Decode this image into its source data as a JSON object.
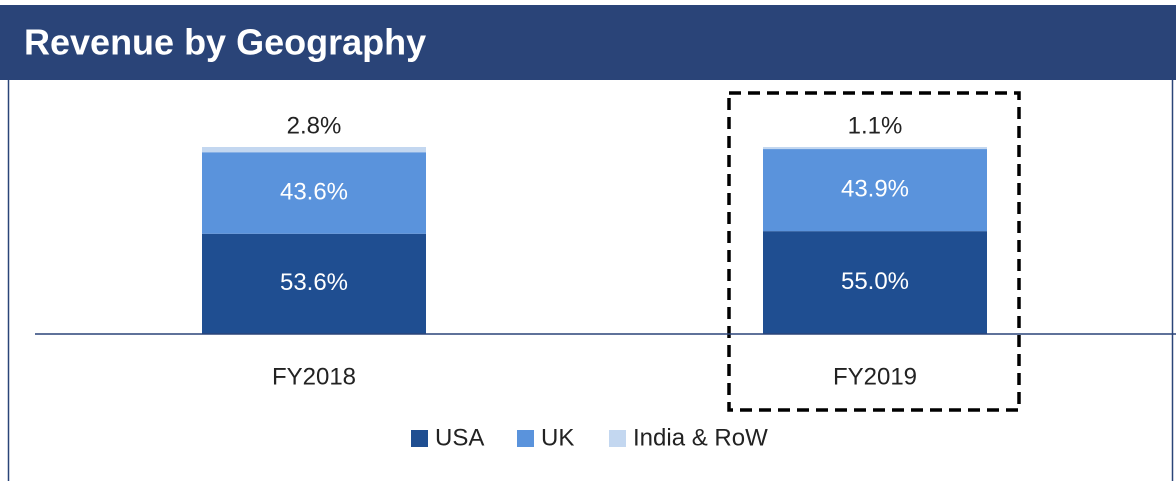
{
  "chart_data": {
    "type": "stacked_bar",
    "title": "Revenue by Geography",
    "categories": [
      "FY2018",
      "FY2019"
    ],
    "series": [
      {
        "name": "USA",
        "color": "#1f4e91",
        "values": [
          53.6,
          55.0
        ],
        "value_labels": [
          "53.6%",
          "55.0%"
        ]
      },
      {
        "name": "UK",
        "color": "#5a93dc",
        "values": [
          43.6,
          43.9
        ],
        "value_labels": [
          "43.6%",
          "43.9%"
        ]
      },
      {
        "name": "India & RoW",
        "color": "#c3d7f0",
        "values": [
          2.8,
          1.1
        ],
        "value_labels": [
          "2.8%",
          "1.1%"
        ]
      }
    ]
  }
}
